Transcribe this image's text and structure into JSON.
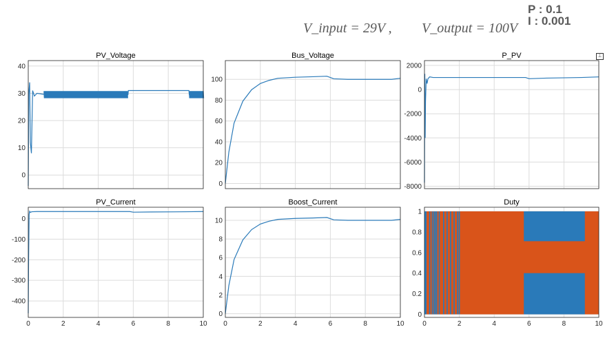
{
  "annotation": {
    "vin": "V_input = 29V ,",
    "vout": "V_output = 100V",
    "p_label": "P : 0.1",
    "i_label": "I : 0.001"
  },
  "colors": {
    "blue": "#2a7ab9",
    "orange": "#d9541a",
    "grid": "#dcdcdc",
    "axis": "#262626"
  },
  "chart_data": [
    {
      "type": "line",
      "title": "PV_Voltage",
      "xlim": [
        0,
        10
      ],
      "ylim": [
        -5,
        42
      ],
      "xticks": [
        0,
        2,
        4,
        6,
        8,
        10
      ],
      "yticks": [
        0,
        10,
        20,
        30,
        40
      ],
      "grid": true,
      "series": [
        {
          "x": [
            0,
            0.03,
            0.08,
            0.12,
            0.18,
            0.25,
            0.35,
            0.5,
            1,
            2,
            3,
            4,
            5,
            5.7,
            5.72,
            7,
            9,
            9.18,
            9.2,
            10
          ],
          "y": [
            -4,
            30,
            34,
            12,
            8,
            31,
            29,
            30,
            29.5,
            29.5,
            29.5,
            29.5,
            29.5,
            29.5,
            31,
            31,
            31,
            31,
            29.5,
            29.5
          ]
        }
      ],
      "noise_bands": [
        {
          "x0": 0.9,
          "x1": 5.7,
          "center": 29.5,
          "amp": 1.3
        },
        {
          "x0": 9.2,
          "x1": 10,
          "center": 29.5,
          "amp": 1.3
        }
      ]
    },
    {
      "type": "line",
      "title": "Bus_Voltage",
      "xlim": [
        0,
        10
      ],
      "ylim": [
        -5,
        118
      ],
      "xticks": [
        0,
        2,
        4,
        6,
        8,
        10
      ],
      "yticks": [
        0,
        20,
        40,
        60,
        80,
        100
      ],
      "grid": true,
      "series": [
        {
          "x": [
            0,
            0.2,
            0.5,
            1,
            1.5,
            2,
            2.5,
            3,
            4,
            5,
            5.8,
            6.2,
            7,
            8,
            9,
            9.5,
            10
          ],
          "y": [
            0,
            30,
            58,
            79,
            90,
            96,
            99,
            101,
            102,
            102.5,
            103,
            100.5,
            100,
            100,
            100,
            100,
            101
          ]
        }
      ]
    },
    {
      "type": "line",
      "title": "P_PV",
      "xlim": [
        0,
        10
      ],
      "ylim": [
        -8200,
        2400
      ],
      "xticks": [
        0,
        2,
        4,
        6,
        8,
        10
      ],
      "yticks": [
        -8000,
        -6000,
        -4000,
        -2000,
        0,
        2000
      ],
      "grid": true,
      "series": [
        {
          "x": [
            0,
            0.02,
            0.04,
            0.06,
            0.1,
            0.15,
            0.2,
            0.3,
            0.5,
            2,
            5,
            5.8,
            6,
            7,
            9,
            10
          ],
          "y": [
            -7700,
            1300,
            -4000,
            -1000,
            900,
            500,
            900,
            1050,
            1000,
            1000,
            1000,
            1000,
            900,
            950,
            1000,
            1050
          ]
        }
      ]
    },
    {
      "type": "line",
      "title": "PV_Current",
      "xlim": [
        0,
        10
      ],
      "ylim": [
        -480,
        55
      ],
      "xticks": [
        0,
        2,
        4,
        6,
        8,
        10
      ],
      "yticks": [
        -400,
        -300,
        -200,
        -100,
        0
      ],
      "grid": true,
      "series": [
        {
          "x": [
            0,
            0.02,
            0.05,
            0.08,
            0.12,
            0.2,
            0.5,
            2,
            5,
            5.8,
            6,
            7,
            9,
            10
          ],
          "y": [
            -460,
            -200,
            20,
            35,
            30,
            33,
            34,
            34,
            34,
            34,
            31,
            32,
            33,
            34
          ]
        }
      ]
    },
    {
      "type": "line",
      "title": "Boost_Current",
      "xlim": [
        0,
        10
      ],
      "ylim": [
        -0.4,
        11.4
      ],
      "xticks": [
        0,
        2,
        4,
        6,
        8,
        10
      ],
      "yticks": [
        0,
        2,
        4,
        6,
        8,
        10
      ],
      "grid": true,
      "series": [
        {
          "x": [
            0,
            0.2,
            0.5,
            1,
            1.5,
            2,
            2.5,
            3,
            4,
            5,
            5.8,
            6.2,
            7,
            8,
            9,
            9.5,
            10
          ],
          "y": [
            0,
            3,
            5.8,
            7.9,
            9,
            9.6,
            9.9,
            10.1,
            10.2,
            10.25,
            10.3,
            10.05,
            10,
            10,
            10,
            10,
            10.1
          ]
        }
      ]
    },
    {
      "type": "area",
      "title": "Duty",
      "xlim": [
        0,
        10
      ],
      "ylim": [
        -0.03,
        1.04
      ],
      "xticks": [
        0,
        2,
        4,
        6,
        8,
        10
      ],
      "yticks": [
        0,
        0.2,
        0.4,
        0.6,
        0.8,
        1
      ],
      "grid": true,
      "series": [
        {
          "name": "",
          "color": "orange",
          "x_range": [
            0,
            10
          ],
          "y_range": [
            0,
            1
          ]
        }
      ],
      "blue_regions": [
        {
          "x0": 0,
          "x1": 0.12,
          "y0": 0,
          "y1": 1
        },
        {
          "x0": 5.7,
          "x1": 9.2,
          "y0": 0.71,
          "y1": 1
        },
        {
          "x0": 5.7,
          "x1": 9.2,
          "y0": 0,
          "y1": 0.4
        }
      ],
      "blue_stripes": [
        0.3,
        0.45,
        0.55,
        0.62,
        0.7,
        0.85,
        1.1,
        1.3,
        1.5,
        1.7,
        1.9,
        2.0
      ]
    }
  ]
}
